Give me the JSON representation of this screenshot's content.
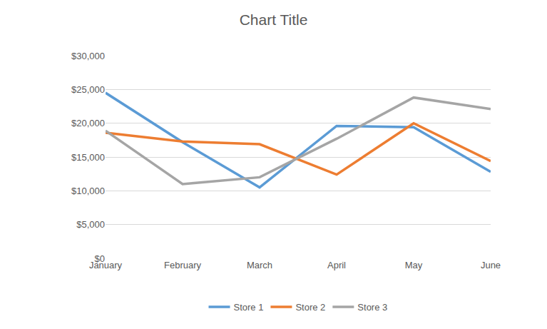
{
  "chart_data": {
    "type": "line",
    "title": "Chart Title",
    "categories": [
      "January",
      "February",
      "March",
      "April",
      "May",
      "June"
    ],
    "series": [
      {
        "name": "Store 1",
        "color": "#5b9bd5",
        "values": [
          24500,
          17200,
          10500,
          19600,
          19400,
          12800
        ]
      },
      {
        "name": "Store 2",
        "color": "#ed7d31",
        "values": [
          18600,
          17300,
          16900,
          12400,
          20000,
          14400
        ]
      },
      {
        "name": "Store 3",
        "color": "#a5a5a5",
        "values": [
          18900,
          11000,
          12000,
          17700,
          23800,
          22100
        ]
      }
    ],
    "ylim": [
      0,
      30000
    ],
    "yticks": [
      {
        "value": 0,
        "label": "$0"
      },
      {
        "value": 5000,
        "label": "$5,000"
      },
      {
        "value": 10000,
        "label": "$10,000"
      },
      {
        "value": 15000,
        "label": "$15,000"
      },
      {
        "value": 20000,
        "label": "$20,000"
      },
      {
        "value": 25000,
        "label": "$25,000"
      },
      {
        "value": 30000,
        "label": "$30,000"
      }
    ],
    "grid": true,
    "legend": "bottom"
  }
}
